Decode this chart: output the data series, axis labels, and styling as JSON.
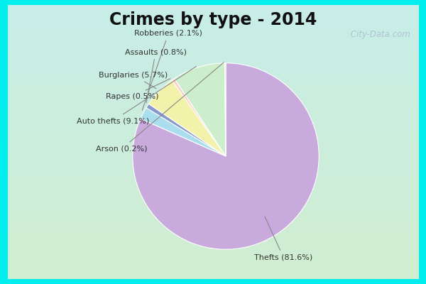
{
  "title": "Crimes by type - 2014",
  "slices": [
    {
      "label": "Thefts",
      "pct": 81.6,
      "color": "#C8AADC"
    },
    {
      "label": "Robberies",
      "pct": 2.1,
      "color": "#AADDEE"
    },
    {
      "label": "Assaults",
      "pct": 0.8,
      "color": "#8899CC"
    },
    {
      "label": "Burglaries",
      "pct": 5.7,
      "color": "#F2F2AA"
    },
    {
      "label": "Rapes",
      "pct": 0.5,
      "color": "#FFCCCC"
    },
    {
      "label": "Auto thefts",
      "pct": 9.1,
      "color": "#CCEECC"
    },
    {
      "label": "Arson",
      "pct": 0.2,
      "color": "#DDEEBB"
    }
  ],
  "title_fontsize": 17,
  "title_color": "#111111",
  "border_color": "#00EEEE",
  "border_width": 10,
  "bg_top_left": "#C8EEE8",
  "bg_bottom_right": "#D0EDD0",
  "watermark": " City-Data.com",
  "ann_fontsize": 8,
  "ann_color": "#333333"
}
